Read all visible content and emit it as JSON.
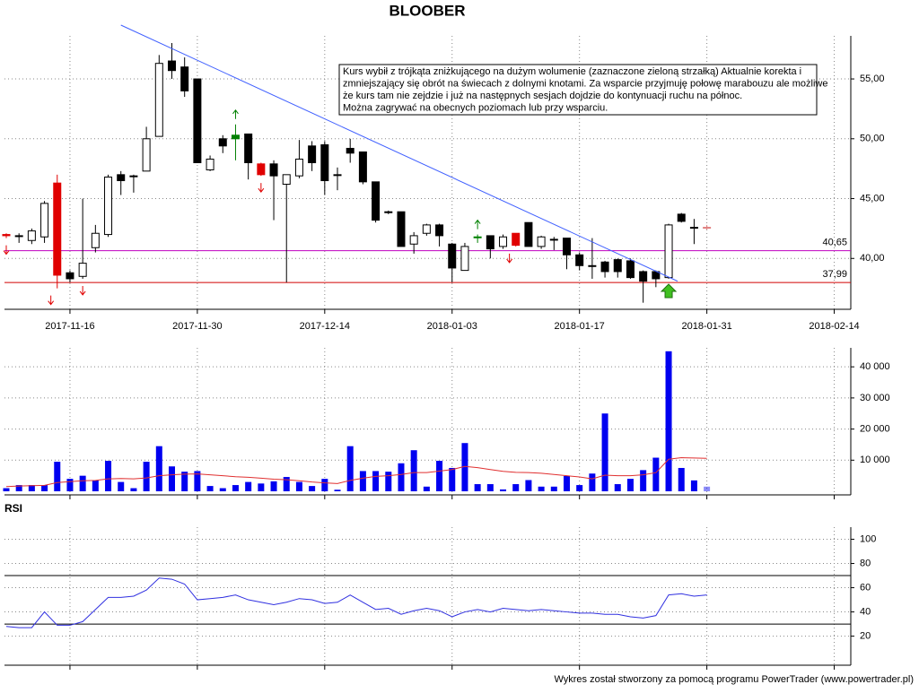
{
  "chart_data": [
    {
      "type": "candlestick",
      "title": "BLOOBER",
      "open": [
        42,
        41.9,
        41.5,
        41.8,
        46.3,
        38.8,
        38.5,
        40.9,
        42,
        47,
        46.9,
        47.3,
        50.2,
        56.5,
        56,
        55,
        47.4,
        50,
        50.3,
        50.4,
        47.9,
        47.9,
        46.2,
        46.9,
        49.4,
        49.5,
        47,
        49.2,
        48.9,
        46.4,
        43.9,
        43.9,
        41.2,
        42.1,
        42.8,
        41.2,
        39,
        41.8,
        41.9,
        41,
        42.1,
        43,
        41,
        41.6,
        41.7,
        40.3,
        39.4,
        39.7,
        39.9,
        39.8,
        38.9,
        38.9,
        38.4,
        43.7,
        42.6,
        42.6
      ],
      "high": [
        42.1,
        42.1,
        42.5,
        44.8,
        47,
        39,
        45,
        42.8,
        47,
        47.3,
        47,
        51,
        57,
        58,
        56.8,
        55,
        48.6,
        50.3,
        51.2,
        50.4,
        48,
        48.2,
        47,
        49.9,
        49.8,
        49.8,
        47.6,
        50,
        48.9,
        46.4,
        44,
        43.9,
        42.2,
        42.9,
        42.9,
        41.3,
        41.3,
        42,
        41.9,
        42,
        42.1,
        43,
        41.9,
        41.8,
        41.7,
        40.5,
        41.7,
        39.8,
        40,
        40,
        39,
        39,
        42.9,
        43.8,
        43.3,
        42.8
      ],
      "low": [
        41.7,
        41.3,
        41.2,
        41.3,
        37.5,
        38,
        38.3,
        40.5,
        41.8,
        45.3,
        45.5,
        47.3,
        50.2,
        55,
        53.5,
        48,
        47.3,
        48.8,
        48.2,
        46.6,
        46.9,
        43.2,
        38,
        46.7,
        47.3,
        45.3,
        45.7,
        48,
        46.2,
        43,
        43.7,
        41,
        40.4,
        41.9,
        41,
        38,
        39,
        41.3,
        40,
        40.8,
        41,
        41,
        40.8,
        40.7,
        39.1,
        39,
        38.3,
        38.4,
        38.4,
        38.3,
        36.3,
        37.6,
        38.3,
        43,
        41.2,
        42.4
      ],
      "close": [
        41.9,
        41.9,
        42.3,
        44.6,
        38.6,
        38.3,
        39.6,
        42.1,
        46.8,
        46.5,
        46.9,
        50,
        56.3,
        55.7,
        54,
        48,
        48.3,
        49.4,
        50,
        48,
        47,
        46.9,
        47,
        48.3,
        48,
        46.5,
        47,
        48.8,
        46.4,
        43.2,
        43.9,
        41,
        41.9,
        42.8,
        41.9,
        39.2,
        41,
        41.8,
        40.8,
        41.8,
        41.1,
        41,
        41.8,
        41.6,
        40.3,
        39.4,
        39.4,
        38.9,
        38.9,
        38.4,
        38.1,
        38.3,
        42.8,
        43.1,
        42.6,
        42.6
      ],
      "colors": [
        "#e00000",
        null,
        null,
        null,
        "#e00000",
        null,
        null,
        null,
        null,
        null,
        null,
        null,
        null,
        null,
        null,
        null,
        null,
        null,
        "#008000",
        null,
        "#e00000",
        null,
        null,
        null,
        null,
        null,
        null,
        null,
        null,
        null,
        null,
        null,
        null,
        null,
        null,
        null,
        null,
        "#008000",
        null,
        null,
        "#e00000",
        null,
        null,
        null,
        null,
        null,
        null,
        null,
        null,
        null,
        null,
        null,
        null,
        null,
        null,
        "#e08080"
      ],
      "xlim": [
        -0.14,
        66.3
      ],
      "xticks": [
        {
          "value": 5,
          "label": "2017-11-16"
        },
        {
          "value": 15,
          "label": "2017-11-30"
        },
        {
          "value": 25,
          "label": "2017-12-14"
        },
        {
          "value": 35,
          "label": "2018-01-03"
        },
        {
          "value": 45,
          "label": "2018-01-17"
        },
        {
          "value": 55,
          "label": "2018-01-31"
        },
        {
          "value": 65,
          "label": "2018-02-14"
        }
      ],
      "ylim": [
        35.75,
        58.6
      ],
      "yticks": [
        {
          "value": 40,
          "label": "40,00"
        },
        {
          "value": 45,
          "label": "45,00"
        },
        {
          "value": 50,
          "label": "50,00"
        },
        {
          "value": 55,
          "label": "55,00"
        }
      ],
      "grid": true,
      "levels": [
        {
          "value": 40.65,
          "label": "40,65",
          "color": "#c000c0"
        },
        {
          "value": 37.99,
          "label": "37,99",
          "color": "#d00000"
        }
      ],
      "trendline": {
        "from": [
          9,
          59.5
        ],
        "to": [
          52.7,
          38.1
        ],
        "color": "#4060ff"
      },
      "down_signals": [
        0,
        3.5,
        6,
        20,
        39.5
      ],
      "up_signals": [
        18,
        37
      ],
      "buy_signal": 52,
      "annotation": [
        "Kurs wybił z trójkąta zniżkującego na dużym wolumenie (zaznaczone zieloną strzałką) Aktualnie korekta i",
        "zmniejszający się obrót na świecach z dolnymi knotami. Za wsparcie przyjmuję połowę marabouzu ale możliwe",
        "że kurs tam nie zejdzie i już na następnych sesjach dojdzie do kontynuacji ruchu na północ.",
        "Można zagrywać na obecnych poziomach lub przy wsparciu."
      ]
    },
    {
      "type": "bar",
      "values": [
        1000,
        2000,
        2000,
        2000,
        9500,
        4000,
        5000,
        3500,
        9800,
        3000,
        1000,
        9500,
        14500,
        8000,
        6300,
        6500,
        1700,
        1000,
        2000,
        3000,
        2500,
        3200,
        4600,
        3000,
        1700,
        4000,
        500,
        14500,
        6500,
        6500,
        6300,
        9000,
        13200,
        1500,
        9800,
        7500,
        15500,
        2300,
        2300,
        600,
        2300,
        3600,
        1500,
        1500,
        4900,
        2000,
        5700,
        25000,
        2300,
        4000,
        6800,
        10800,
        45000,
        7500,
        3500,
        1500
      ],
      "color": "#0000f0",
      "ma": {
        "color": "#e03030",
        "values": [
          1500,
          1700,
          1800,
          1900,
          2800,
          3100,
          3400,
          3500,
          4000,
          4100,
          4000,
          4300,
          5000,
          5300,
          5500,
          5600,
          5300,
          5000,
          4700,
          4500,
          4200,
          3900,
          3700,
          3400,
          3000,
          2700,
          2500,
          3500,
          4200,
          4800,
          5000,
          5400,
          6000,
          6000,
          6500,
          7000,
          8000,
          7600,
          7000,
          6400,
          6100,
          6000,
          5800,
          5400,
          5000,
          4600,
          4000,
          5200,
          5000,
          5000,
          5300,
          6000,
          10300,
          10800,
          10700,
          10600
        ]
      },
      "ylim": [
        -1150,
        46100
      ],
      "yticks": [
        {
          "value": 10000,
          "label": "10 000"
        },
        {
          "value": 20000,
          "label": "20 000"
        },
        {
          "value": 30000,
          "label": "30 000"
        },
        {
          "value": 40000,
          "label": "40 000"
        }
      ],
      "grid": true
    },
    {
      "type": "line",
      "label": "RSI",
      "values": [
        28,
        27,
        27,
        40,
        29,
        29,
        32,
        42,
        52,
        52,
        53,
        58,
        68,
        67,
        63,
        50,
        51,
        52,
        54,
        50,
        48,
        46,
        48,
        51,
        50,
        47,
        48,
        54,
        48,
        42,
        43,
        38,
        41,
        43,
        41,
        36,
        40,
        42,
        40,
        43,
        42,
        41,
        42,
        41,
        40,
        39,
        39,
        38,
        38,
        36,
        35,
        37,
        54,
        55,
        53,
        54
      ],
      "color": "#3030e0",
      "ylim": [
        -4,
        110
      ],
      "yticks": [
        20,
        40,
        60,
        80,
        100
      ],
      "levels": [
        70,
        30
      ],
      "grid": true
    }
  ],
  "footer": "Wykres został stworzony za pomocą programu PowerTrader (www.powertrader.pl)"
}
